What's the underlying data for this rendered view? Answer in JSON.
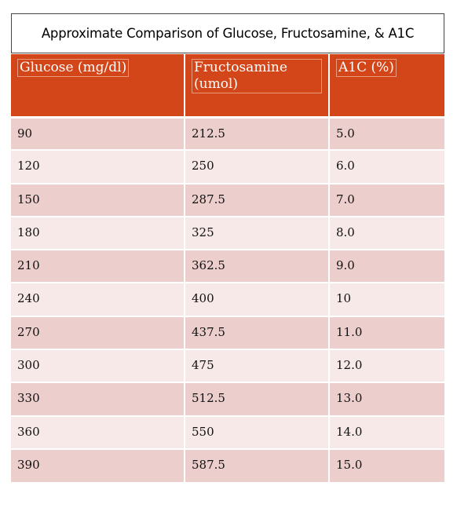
{
  "title": "Approximate Comparison of Glucose, Fructosamine, & A1C",
  "columns": [
    "Glucose (mg/dl)",
    "Fructosamine (umol)",
    "A1C (%)"
  ],
  "rows": [
    [
      "90",
      "212.5",
      "5.0"
    ],
    [
      "120",
      "250",
      "6.0"
    ],
    [
      "150",
      "287.5",
      "7.0"
    ],
    [
      "180",
      "325",
      "8.0"
    ],
    [
      "210",
      "362.5",
      "9.0"
    ],
    [
      "240",
      "400",
      "10"
    ],
    [
      "270",
      "437.5",
      "11.0"
    ],
    [
      "300",
      "475",
      "12.0"
    ],
    [
      "330",
      "512.5",
      "13.0"
    ],
    [
      "360",
      "550",
      "14.0"
    ],
    [
      "390",
      "587.5",
      "15.0"
    ]
  ],
  "colors": {
    "header_bg": "#d3461a",
    "row_odd": "#eccfcd",
    "row_even": "#f7e9e8"
  }
}
